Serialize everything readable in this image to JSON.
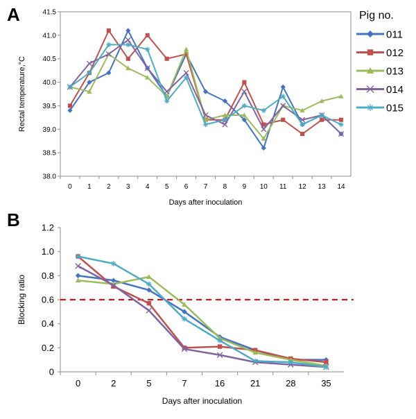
{
  "figure": {
    "panel_a_label": "A",
    "panel_b_label": "B",
    "legend_title": "Pig no."
  },
  "chart_data": [
    {
      "type": "line",
      "panel": "A",
      "title": "",
      "xlabel": "Days after inoculation",
      "ylabel": "Rectal temperature,°C",
      "x": [
        0,
        1,
        2,
        3,
        4,
        5,
        6,
        7,
        8,
        9,
        10,
        11,
        12,
        13,
        14
      ],
      "ylim": [
        38.0,
        41.5
      ],
      "y_ticks": [
        "38.0",
        "38.5",
        "39.0",
        "39.5",
        "40.0",
        "40.5",
        "41.0",
        "41.5"
      ],
      "grid": false,
      "legend_position": "right",
      "series": [
        {
          "name": "011",
          "color": "#4472C4",
          "marker": "diamond",
          "values": [
            39.4,
            40.0,
            40.2,
            41.1,
            40.3,
            39.7,
            40.6,
            39.8,
            39.6,
            39.2,
            38.6,
            39.9,
            39.1,
            39.3,
            38.9
          ]
        },
        {
          "name": "012",
          "color": "#C0504D",
          "marker": "square",
          "values": [
            39.5,
            40.2,
            41.1,
            40.5,
            41.0,
            40.5,
            40.6,
            39.2,
            39.2,
            40.0,
            39.1,
            39.2,
            38.9,
            39.2,
            39.2
          ]
        },
        {
          "name": "013",
          "color": "#9BBB59",
          "marker": "triangle",
          "values": [
            39.9,
            39.8,
            40.6,
            40.3,
            40.1,
            39.7,
            40.7,
            39.2,
            39.3,
            39.3,
            38.8,
            39.5,
            39.4,
            39.6,
            39.7
          ]
        },
        {
          "name": "014",
          "color": "#8064A2",
          "marker": "x",
          "values": [
            39.9,
            40.4,
            40.6,
            40.9,
            40.3,
            39.8,
            40.2,
            39.3,
            39.1,
            39.8,
            39.0,
            39.5,
            39.2,
            39.3,
            38.9
          ]
        },
        {
          "name": "015",
          "color": "#4BACC6",
          "marker": "star",
          "values": [
            39.9,
            40.2,
            40.8,
            40.8,
            40.7,
            39.6,
            40.1,
            39.1,
            39.2,
            39.5,
            39.4,
            39.7,
            39.1,
            39.3,
            39.1
          ]
        }
      ]
    },
    {
      "type": "line",
      "panel": "B",
      "title": "",
      "xlabel": "Days after inoculation",
      "ylabel": "Blocking ratio",
      "categories": [
        "0",
        "2",
        "5",
        "7",
        "16",
        "21",
        "28",
        "35"
      ],
      "ylim": [
        0,
        1.2
      ],
      "y_ticks": [
        "0",
        "0.2",
        "0.4",
        "0.6",
        "0.8",
        "1.0",
        "1.2"
      ],
      "threshold": 0.6,
      "threshold_color": "#FF0000",
      "grid": false,
      "series": [
        {
          "name": "011",
          "color": "#4472C4",
          "marker": "diamond",
          "values": [
            0.8,
            0.76,
            0.68,
            0.5,
            0.29,
            0.18,
            0.1,
            0.1
          ]
        },
        {
          "name": "012",
          "color": "#C0504D",
          "marker": "square",
          "values": [
            0.96,
            0.71,
            0.57,
            0.2,
            0.21,
            0.18,
            0.11,
            0.08
          ]
        },
        {
          "name": "013",
          "color": "#9BBB59",
          "marker": "triangle",
          "values": [
            0.76,
            0.73,
            0.79,
            0.56,
            0.28,
            0.16,
            0.1,
            0.05
          ]
        },
        {
          "name": "014",
          "color": "#8064A2",
          "marker": "x",
          "values": [
            0.88,
            0.72,
            0.51,
            0.19,
            0.14,
            0.08,
            0.06,
            0.04
          ]
        },
        {
          "name": "015",
          "color": "#4BACC6",
          "marker": "star",
          "values": [
            0.96,
            0.9,
            0.73,
            0.44,
            0.26,
            0.09,
            0.08,
            0.04
          ]
        }
      ]
    }
  ]
}
